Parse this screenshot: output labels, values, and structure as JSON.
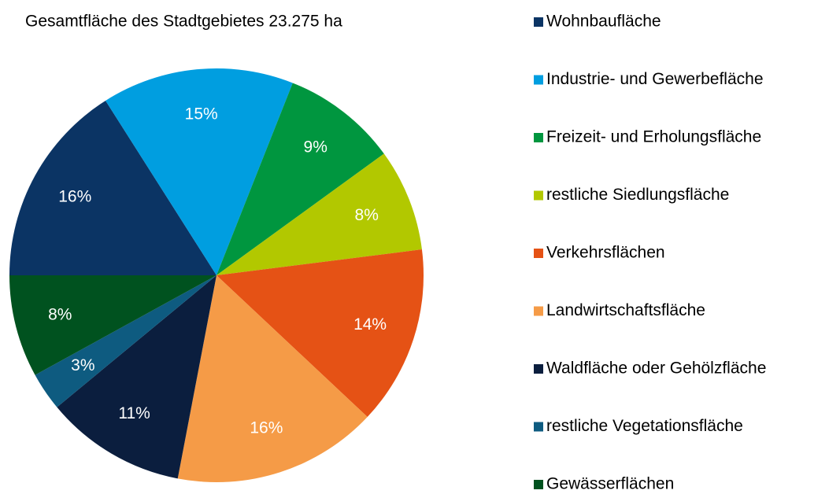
{
  "chart_data": {
    "type": "pie",
    "title": "Gesamtfläche des Stadtgebietes 23.275 ha",
    "categories": [
      "Wohnbaufläche",
      "Industrie- und Gewerbefläche",
      "Freizeit- und Erholungsfläche",
      "restliche Siedlungsfläche",
      "Verkehrsflächen",
      "Landwirtschaftsfläche",
      "Waldfläche oder Gehölzfläche",
      "restliche Vegetationsfläche",
      "Gewässerflächen"
    ],
    "values": [
      16,
      15,
      9,
      8,
      14,
      16,
      11,
      3,
      8
    ],
    "value_labels": [
      "16%",
      "15%",
      "9%",
      "8%",
      "14%",
      "16%",
      "11%",
      "3%",
      "8%"
    ],
    "colors": [
      "#0b3464",
      "#009ee0",
      "#00963f",
      "#b2c800",
      "#e55215",
      "#f59b47",
      "#0b1e3e",
      "#0e5b80",
      "#00521f"
    ],
    "legend": "right"
  }
}
